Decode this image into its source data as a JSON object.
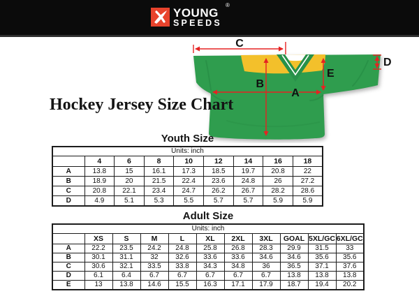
{
  "colors": {
    "banner_black": "#0b0b0b",
    "logo_orange": "#e8432c",
    "jersey_green": "#2f9d4e",
    "jersey_green_dark": "#1e7d3c",
    "shoulder_yellow": "#f3c02b",
    "arrow_red": "#e62222"
  },
  "banner": {
    "brand_line1": "YOUNG",
    "brand_line2": "SPEEDS",
    "registered_mark": "®"
  },
  "page": {
    "title": "Hockey Jersey Size Chart"
  },
  "diagram": {
    "labels": {
      "a": "A",
      "b": "B",
      "c": "C",
      "d": "D",
      "e": "E"
    }
  },
  "youth_table": {
    "heading": "Youth Size",
    "units_label": "Units: inch",
    "columns": [
      "4",
      "6",
      "8",
      "10",
      "12",
      "14",
      "16",
      "18"
    ],
    "rows": [
      {
        "label": "A",
        "values": [
          "13.8",
          "15",
          "16.1",
          "17.3",
          "18.5",
          "19.7",
          "20.8",
          "22"
        ]
      },
      {
        "label": "B",
        "values": [
          "18.9",
          "20",
          "21.5",
          "22.4",
          "23.6",
          "24.8",
          "26",
          "27.2"
        ]
      },
      {
        "label": "C",
        "values": [
          "20.8",
          "22.1",
          "23.4",
          "24.7",
          "26.2",
          "26.7",
          "28.2",
          "28.6"
        ]
      },
      {
        "label": "D",
        "values": [
          "4.9",
          "5.1",
          "5.3",
          "5.5",
          "5.7",
          "5.7",
          "5.9",
          "5.9"
        ]
      }
    ]
  },
  "adult_table": {
    "heading": "Adult Size",
    "units_label": "Units: inch",
    "columns": [
      "XS",
      "S",
      "M",
      "L",
      "XL",
      "2XL",
      "3XL",
      "GOAL",
      "5XL/GC",
      "6XL/GC"
    ],
    "rows": [
      {
        "label": "A",
        "values": [
          "22.2",
          "23.5",
          "24.2",
          "24.8",
          "25.8",
          "26.8",
          "28.3",
          "29.9",
          "31.5",
          "33"
        ]
      },
      {
        "label": "B",
        "values": [
          "30.1",
          "31.1",
          "32",
          "32.6",
          "33.6",
          "33.6",
          "34.6",
          "34.6",
          "35.6",
          "35.6"
        ]
      },
      {
        "label": "C",
        "values": [
          "30.6",
          "32.1",
          "33.5",
          "33.8",
          "34.3",
          "34.8",
          "36",
          "36.5",
          "37.1",
          "37.6"
        ]
      },
      {
        "label": "D",
        "values": [
          "6.1",
          "6.4",
          "6.7",
          "6.7",
          "6.7",
          "6.7",
          "6.7",
          "13.8",
          "13.8",
          "13.8"
        ]
      },
      {
        "label": "E",
        "values": [
          "13",
          "13.8",
          "14.6",
          "15.5",
          "16.3",
          "17.1",
          "17.9",
          "18.7",
          "19.4",
          "20.2"
        ]
      }
    ]
  }
}
